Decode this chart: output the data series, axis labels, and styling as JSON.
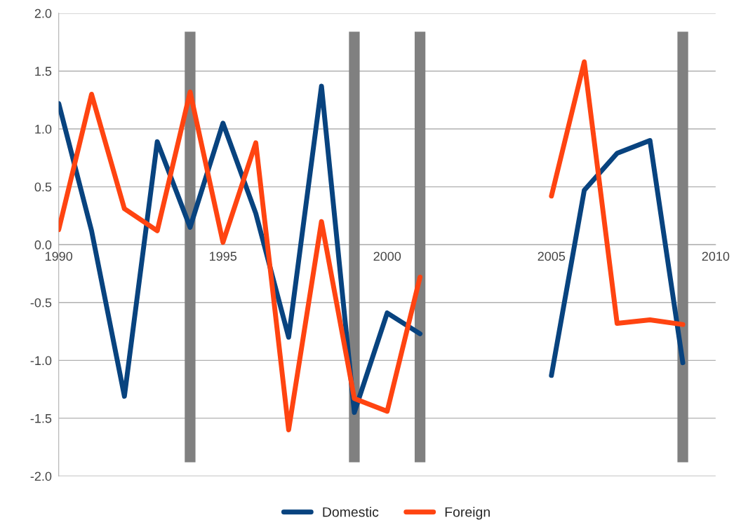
{
  "chart_data": {
    "type": "line",
    "x": [
      1990,
      1991,
      1992,
      1993,
      1994,
      1995,
      1996,
      1997,
      1998,
      1999,
      2000,
      2001,
      2002,
      2003,
      2004,
      2005,
      2006,
      2007,
      2008,
      2009
    ],
    "series": [
      {
        "name": "Domestic",
        "color": "#08437f",
        "values": [
          1.22,
          0.12,
          -1.31,
          0.89,
          0.15,
          1.05,
          0.27,
          -0.8,
          1.37,
          -1.45,
          -0.59,
          -0.77,
          null,
          null,
          null,
          -1.13,
          0.47,
          0.79,
          0.9,
          -1.02
        ]
      },
      {
        "name": "Foreign",
        "color": "#ff4411",
        "values": [
          0.13,
          1.3,
          0.31,
          0.12,
          1.32,
          0.02,
          0.88,
          -1.6,
          0.2,
          -1.33,
          -1.44,
          -0.28,
          null,
          null,
          null,
          0.42,
          1.58,
          -0.68,
          -0.65,
          -0.69
        ]
      }
    ],
    "ref_lines": [
      {
        "axis": "x",
        "value": 1994,
        "color": "#808080"
      },
      {
        "axis": "x",
        "value": 1999,
        "color": "#808080"
      },
      {
        "axis": "x",
        "value": 2001,
        "color": "#808080"
      },
      {
        "axis": "x",
        "value": 2009,
        "color": "#808080"
      }
    ],
    "xlim": [
      1990,
      2010
    ],
    "xticks": [
      1990,
      1995,
      2000,
      2005,
      2010
    ],
    "ylim": [
      -2.0,
      2.0
    ],
    "yticks": [
      {
        "value": -2.0,
        "label": "-2.0"
      },
      {
        "value": -1.5,
        "label": "-1.5"
      },
      {
        "value": -1.0,
        "label": "-1.0"
      },
      {
        "value": -0.5,
        "label": "-0.5"
      },
      {
        "value": 0.0,
        "label": "0.0"
      },
      {
        "value": 0.5,
        "label": "0.5"
      },
      {
        "value": 1.0,
        "label": "1.0"
      },
      {
        "value": 1.5,
        "label": "1.5"
      },
      {
        "value": 2.0,
        "label": "2.0"
      }
    ],
    "grid": "y",
    "legend": "bottom",
    "marker": "none",
    "line_style": "solid"
  }
}
